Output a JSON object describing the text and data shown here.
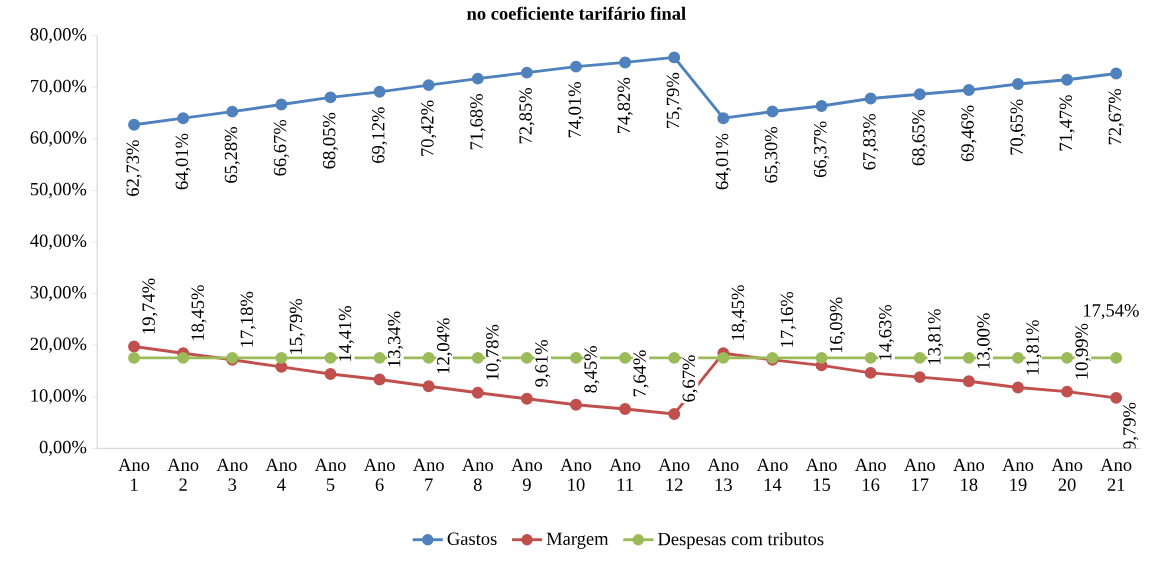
{
  "chart_data": {
    "type": "line",
    "title": "no coeficiente tarifário final",
    "categories": [
      "Ano 1",
      "Ano 2",
      "Ano 3",
      "Ano 4",
      "Ano 5",
      "Ano 6",
      "Ano 7",
      "Ano 8",
      "Ano 9",
      "Ano 10",
      "Ano 11",
      "Ano 12",
      "Ano 13",
      "Ano 14",
      "Ano 15",
      "Ano 16",
      "Ano 17",
      "Ano 18",
      "Ano 19",
      "Ano 20",
      "Ano 21"
    ],
    "ylim": [
      0,
      80
    ],
    "yticks": [
      {
        "value": 0,
        "label": "0,00%"
      },
      {
        "value": 10,
        "label": "10,00%"
      },
      {
        "value": 20,
        "label": "20,00%"
      },
      {
        "value": 30,
        "label": "30,00%"
      },
      {
        "value": 40,
        "label": "40,00%"
      },
      {
        "value": 50,
        "label": "50,00%"
      },
      {
        "value": 60,
        "label": "60,00%"
      },
      {
        "value": 70,
        "label": "70,00%"
      },
      {
        "value": 80,
        "label": "80,00%"
      }
    ],
    "grid": false,
    "legend": "bottom",
    "marker": "circle",
    "line_style": "solid",
    "series": [
      {
        "name": "Gastos",
        "color": "#4f81bd",
        "values": [
          62.73,
          64.01,
          65.28,
          66.67,
          68.05,
          69.12,
          70.42,
          71.68,
          72.85,
          74.01,
          74.82,
          75.79,
          64.01,
          65.3,
          66.37,
          67.83,
          68.65,
          69.46,
          70.65,
          71.47,
          72.67
        ],
        "value_labels": [
          "62,73%",
          "64,01%",
          "65,28%",
          "66,67%",
          "68,05%",
          "69,12%",
          "70,42%",
          "71,68%",
          "72,85%",
          "74,01%",
          "74,82%",
          "75,79%",
          "64,01%",
          "65,30%",
          "66,37%",
          "67,83%",
          "68,65%",
          "69,46%",
          "70,65%",
          "71,47%",
          "72,67%"
        ]
      },
      {
        "name": "Margem",
        "color": "#c0504d",
        "values": [
          19.74,
          18.45,
          17.18,
          15.79,
          14.41,
          13.34,
          12.04,
          10.78,
          9.61,
          8.45,
          7.64,
          6.67,
          18.45,
          17.16,
          16.09,
          14.63,
          13.81,
          13.0,
          11.81,
          10.99,
          9.79
        ],
        "value_labels": [
          "19,74%",
          "18,45%",
          "17,18%",
          "15,79%",
          "14,41%",
          "13,34%",
          "12,04%",
          "10,78%",
          "9,61%",
          "8,45%",
          "7,64%",
          "6,67%",
          "18,45%",
          "17,16%",
          "16,09%",
          "14,63%",
          "13,81%",
          "13,00%",
          "11,81%",
          "10,99%",
          "9,79%"
        ]
      },
      {
        "name": "Despesas com tributos",
        "color": "#9bbb59",
        "values": [
          17.54,
          17.54,
          17.54,
          17.54,
          17.54,
          17.54,
          17.54,
          17.54,
          17.54,
          17.54,
          17.54,
          17.54,
          17.54,
          17.54,
          17.54,
          17.54,
          17.54,
          17.54,
          17.54,
          17.54,
          17.54
        ],
        "value_labels": [
          null,
          null,
          null,
          null,
          null,
          null,
          null,
          null,
          null,
          null,
          null,
          null,
          null,
          null,
          null,
          null,
          null,
          null,
          null,
          null,
          "17,54%"
        ]
      }
    ]
  }
}
